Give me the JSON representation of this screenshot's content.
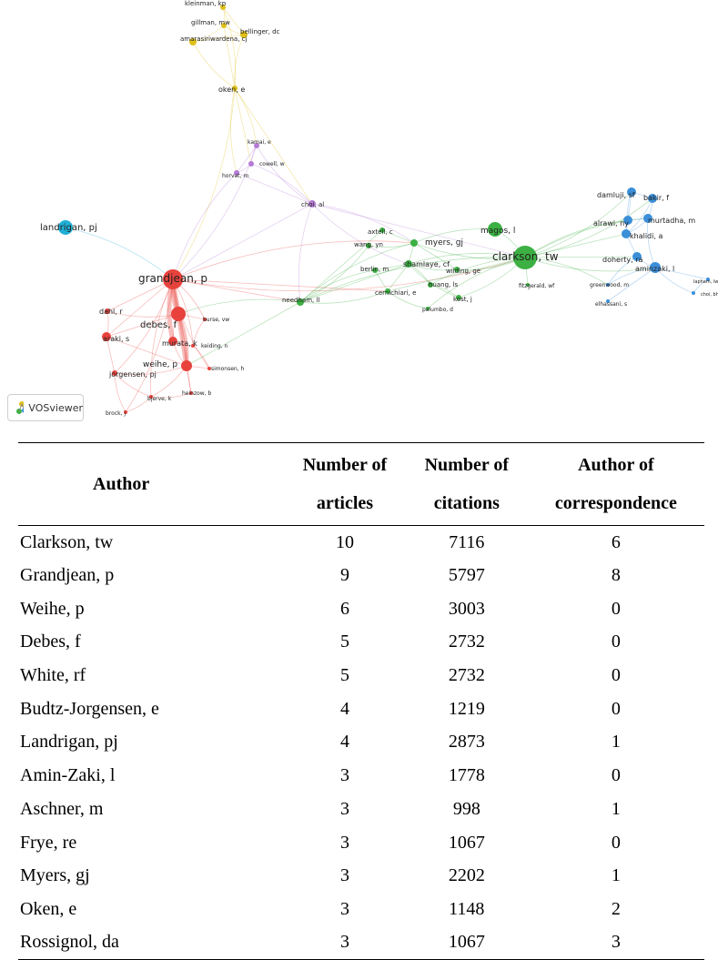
{
  "network": {
    "badge_label": "VOSviewer",
    "clusters": {
      "red": "#e8423d",
      "green": "#3cb043",
      "blue": "#3b8fd9",
      "yellow": "#e0c11a",
      "purple": "#b57ad6",
      "cyan": "#1fb0d6"
    },
    "nodes": [
      {
        "label": "kleinman, kp",
        "cluster": "yellow"
      },
      {
        "label": "gillman, mw",
        "cluster": "yellow"
      },
      {
        "label": "bellinger, dc",
        "cluster": "yellow"
      },
      {
        "label": "amarasiriwardena, cj",
        "cluster": "yellow"
      },
      {
        "label": "oken, e",
        "cluster": "yellow"
      },
      {
        "label": "kamai, e",
        "cluster": "purple"
      },
      {
        "label": "cowell, w",
        "cluster": "purple"
      },
      {
        "label": "horvat, m",
        "cluster": "purple"
      },
      {
        "label": "choi, al",
        "cluster": "purple"
      },
      {
        "label": "landrigan, pj",
        "cluster": "cyan"
      },
      {
        "label": "grandjean, p",
        "cluster": "red"
      },
      {
        "label": "dahl, r",
        "cluster": "red"
      },
      {
        "label": "debes, f",
        "cluster": "red"
      },
      {
        "label": "burse, vw",
        "cluster": "red"
      },
      {
        "label": "araki, s",
        "cluster": "red"
      },
      {
        "label": "murata, k",
        "cluster": "red"
      },
      {
        "label": "keiding, n",
        "cluster": "red"
      },
      {
        "label": "weihe, p",
        "cluster": "red"
      },
      {
        "label": "simonsen, h",
        "cluster": "red"
      },
      {
        "label": "jorgensen, pj",
        "cluster": "red"
      },
      {
        "label": "heinzow, b",
        "cluster": "red"
      },
      {
        "label": "bjerve, k",
        "cluster": "red"
      },
      {
        "label": "brock, j",
        "cluster": "red"
      },
      {
        "label": "needham, ll",
        "cluster": "green"
      },
      {
        "label": "axtell, c",
        "cluster": "green"
      },
      {
        "label": "wang, yn",
        "cluster": "green"
      },
      {
        "label": "myers, gj",
        "cluster": "green"
      },
      {
        "label": "magos, l",
        "cluster": "green"
      },
      {
        "label": "shamlaye, cf",
        "cluster": "green"
      },
      {
        "label": "berlin, m",
        "cluster": "green"
      },
      {
        "label": "wilding, ge",
        "cluster": "green"
      },
      {
        "label": "huang, ls",
        "cluster": "green"
      },
      {
        "label": "cernichiari, e",
        "cluster": "green"
      },
      {
        "label": "kost, j",
        "cluster": "green"
      },
      {
        "label": "palumbo, d",
        "cluster": "green"
      },
      {
        "label": "clarkson, tw",
        "cluster": "green"
      },
      {
        "label": "fitzgerald, wf",
        "cluster": "green"
      },
      {
        "label": "damluji, sf",
        "cluster": "blue"
      },
      {
        "label": "bakir, f",
        "cluster": "blue"
      },
      {
        "label": "alrawi, ny",
        "cluster": "blue"
      },
      {
        "label": "murtadha, m",
        "cluster": "blue"
      },
      {
        "label": "khalidi, a",
        "cluster": "blue"
      },
      {
        "label": "doherty, ra",
        "cluster": "blue"
      },
      {
        "label": "aminzaki, l",
        "cluster": "blue"
      },
      {
        "label": "greenwood, m",
        "cluster": "blue"
      },
      {
        "label": "elhassani, s",
        "cluster": "blue"
      },
      {
        "label": "lapham, lw",
        "cluster": "blue"
      },
      {
        "label": "choi, bh",
        "cluster": "blue"
      }
    ]
  },
  "table": {
    "headers": {
      "author": "Author",
      "articles_line1": "Number of",
      "articles_line2": "articles",
      "citations_line1": "Number of",
      "citations_line2": "citations",
      "corr_line1": "Author of",
      "corr_line2": "correspondence"
    },
    "rows": [
      {
        "author": "Clarkson, tw",
        "articles": "10",
        "citations": "7116",
        "correspondence": "6"
      },
      {
        "author": "Grandjean, p",
        "articles": "9",
        "citations": "5797",
        "correspondence": "8"
      },
      {
        "author": "Weihe, p",
        "articles": "6",
        "citations": "3003",
        "correspondence": "0"
      },
      {
        "author": "Debes, f",
        "articles": "5",
        "citations": "2732",
        "correspondence": "0"
      },
      {
        "author": "White, rf",
        "articles": "5",
        "citations": "2732",
        "correspondence": "0"
      },
      {
        "author": "Budtz-Jorgensen, e",
        "articles": "4",
        "citations": "1219",
        "correspondence": "0"
      },
      {
        "author": "Landrigan, pj",
        "articles": "4",
        "citations": "2873",
        "correspondence": "1"
      },
      {
        "author": "Amin-Zaki, l",
        "articles": "3",
        "citations": "1778",
        "correspondence": "0"
      },
      {
        "author": "Aschner, m",
        "articles": "3",
        "citations": "998",
        "correspondence": "1"
      },
      {
        "author": "Frye, re",
        "articles": "3",
        "citations": "1067",
        "correspondence": "0"
      },
      {
        "author": "Myers, gj",
        "articles": "3",
        "citations": "2202",
        "correspondence": "1"
      },
      {
        "author": "Oken, e",
        "articles": "3",
        "citations": "1148",
        "correspondence": "2"
      },
      {
        "author": "Rossignol, da",
        "articles": "3",
        "citations": "1067",
        "correspondence": "3"
      }
    ]
  }
}
